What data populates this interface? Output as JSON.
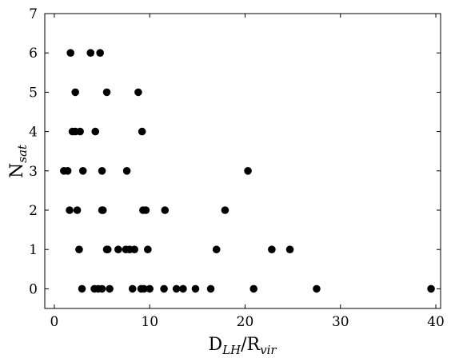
{
  "chart_data": {
    "type": "scatter",
    "xlabel": {
      "base": "D",
      "sub": "LH",
      "sep": "/R",
      "sub2": "vir"
    },
    "ylabel": {
      "base": "N",
      "sub": "sat"
    },
    "xlim": [
      -1,
      40.5
    ],
    "ylim": [
      -0.5,
      7
    ],
    "xticks": [
      0,
      10,
      20,
      30,
      40
    ],
    "yticks": [
      0,
      1,
      2,
      3,
      4,
      5,
      6,
      7
    ],
    "grid": false,
    "marker_color": "#000000",
    "points": [
      {
        "x": 1.7,
        "y": 6
      },
      {
        "x": 3.8,
        "y": 6
      },
      {
        "x": 4.8,
        "y": 6
      },
      {
        "x": 2.2,
        "y": 5
      },
      {
        "x": 5.5,
        "y": 5
      },
      {
        "x": 8.8,
        "y": 5
      },
      {
        "x": 1.9,
        "y": 4
      },
      {
        "x": 2.2,
        "y": 4
      },
      {
        "x": 2.7,
        "y": 4
      },
      {
        "x": 4.3,
        "y": 4
      },
      {
        "x": 9.2,
        "y": 4
      },
      {
        "x": 1.0,
        "y": 3
      },
      {
        "x": 1.4,
        "y": 3
      },
      {
        "x": 3.0,
        "y": 3
      },
      {
        "x": 5.0,
        "y": 3
      },
      {
        "x": 7.6,
        "y": 3
      },
      {
        "x": 20.3,
        "y": 3
      },
      {
        "x": 1.6,
        "y": 2
      },
      {
        "x": 2.4,
        "y": 2
      },
      {
        "x": 5.0,
        "y": 2
      },
      {
        "x": 5.1,
        "y": 2
      },
      {
        "x": 9.3,
        "y": 2
      },
      {
        "x": 9.6,
        "y": 2
      },
      {
        "x": 11.6,
        "y": 2
      },
      {
        "x": 17.9,
        "y": 2
      },
      {
        "x": 2.6,
        "y": 1
      },
      {
        "x": 5.5,
        "y": 1
      },
      {
        "x": 5.6,
        "y": 1
      },
      {
        "x": 6.7,
        "y": 1
      },
      {
        "x": 7.5,
        "y": 1
      },
      {
        "x": 7.9,
        "y": 1
      },
      {
        "x": 8.4,
        "y": 1
      },
      {
        "x": 9.8,
        "y": 1
      },
      {
        "x": 17.0,
        "y": 1
      },
      {
        "x": 22.8,
        "y": 1
      },
      {
        "x": 24.7,
        "y": 1
      },
      {
        "x": 2.9,
        "y": 0
      },
      {
        "x": 4.2,
        "y": 0
      },
      {
        "x": 4.6,
        "y": 0
      },
      {
        "x": 5.0,
        "y": 0
      },
      {
        "x": 5.8,
        "y": 0
      },
      {
        "x": 8.2,
        "y": 0
      },
      {
        "x": 9.1,
        "y": 0
      },
      {
        "x": 9.4,
        "y": 0
      },
      {
        "x": 10.0,
        "y": 0
      },
      {
        "x": 11.5,
        "y": 0
      },
      {
        "x": 12.8,
        "y": 0
      },
      {
        "x": 13.5,
        "y": 0
      },
      {
        "x": 14.8,
        "y": 0
      },
      {
        "x": 16.4,
        "y": 0
      },
      {
        "x": 20.9,
        "y": 0
      },
      {
        "x": 27.5,
        "y": 0
      },
      {
        "x": 39.5,
        "y": 0
      }
    ]
  }
}
